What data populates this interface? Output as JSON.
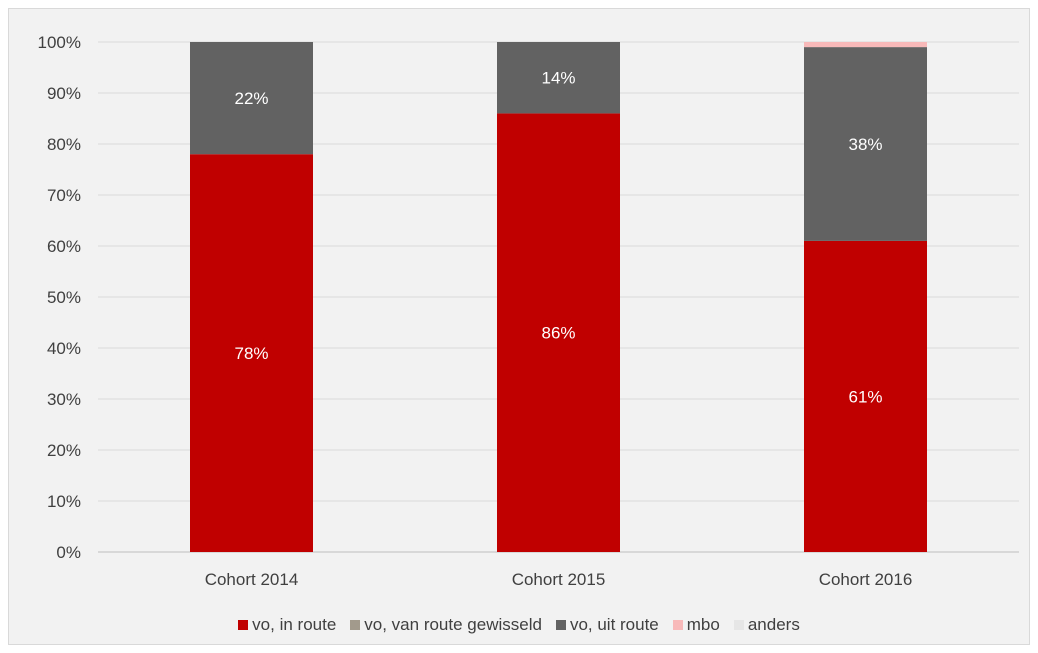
{
  "chart_data": {
    "type": "bar",
    "stacked": true,
    "categories": [
      "Cohort 2014",
      "Cohort 2015",
      "Cohort 2016"
    ],
    "series": [
      {
        "name": "vo, in route",
        "values": [
          78,
          86,
          61
        ],
        "labels": [
          "78%",
          "86%",
          "61%"
        ],
        "color": "#c00000"
      },
      {
        "name": "vo, van route gewisseld",
        "values": [
          0,
          0,
          0
        ],
        "labels": [
          "",
          "",
          ""
        ],
        "color": "#a29a8c"
      },
      {
        "name": "vo, uit route",
        "values": [
          22,
          14,
          38
        ],
        "labels": [
          "22%",
          "14%",
          "38%"
        ],
        "color": "#626262"
      },
      {
        "name": "mbo",
        "values": [
          0,
          0,
          1
        ],
        "labels": [
          "",
          "",
          ""
        ],
        "color": "#f8b9b9"
      },
      {
        "name": "anders",
        "values": [
          0,
          0,
          0
        ],
        "labels": [
          "",
          "",
          ""
        ],
        "color": "#e6e6e6"
      }
    ],
    "ylim": [
      0,
      100
    ],
    "yticks": [
      "0%",
      "10%",
      "20%",
      "30%",
      "40%",
      "50%",
      "60%",
      "70%",
      "80%",
      "90%",
      "100%"
    ],
    "grid": true,
    "legend": "bottom",
    "title": "",
    "xlabel": "",
    "ylabel": ""
  }
}
